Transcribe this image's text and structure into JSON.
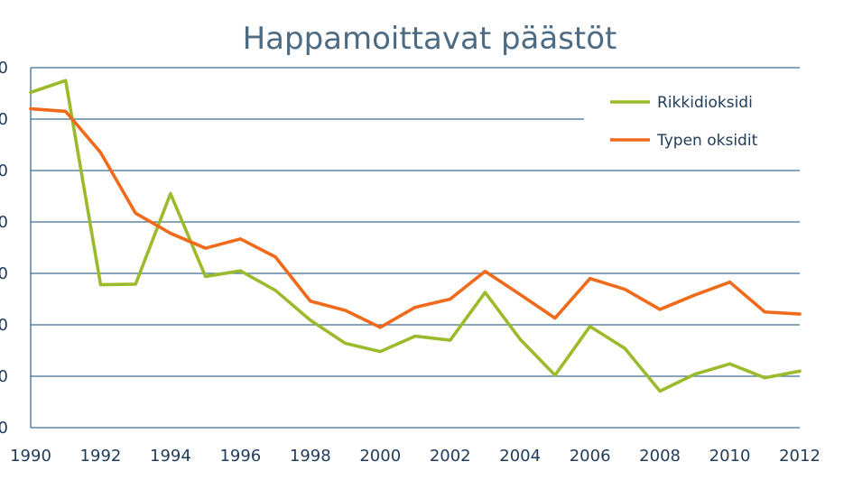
{
  "chart_data": {
    "type": "line",
    "title": "Happamoittavat päästöt",
    "xlabel": "",
    "ylabel": "",
    "x": [
      1990,
      1991,
      1992,
      1993,
      1994,
      1995,
      1996,
      1997,
      1998,
      1999,
      2000,
      2001,
      2002,
      2003,
      2004,
      2005,
      2006,
      2007,
      2008,
      2009,
      2010,
      2011,
      2012
    ],
    "x_tick_labels": [
      "1990",
      "1992",
      "1994",
      "1996",
      "1998",
      "2000",
      "2002",
      "2004",
      "2006",
      "2008",
      "2010",
      "2012"
    ],
    "y_tick_labels": [
      "0",
      "0",
      "0",
      "0",
      "0",
      "0",
      "0",
      "0"
    ],
    "ylim": [
      0,
      7
    ],
    "grid": true,
    "legend_position": "top-right",
    "series": [
      {
        "name": "Rikkidioksidi",
        "color": "#9bbb2c",
        "values": [
          6.52,
          6.75,
          2.78,
          2.79,
          4.55,
          2.94,
          3.05,
          2.67,
          2.09,
          1.64,
          1.48,
          1.78,
          1.7,
          2.63,
          1.72,
          1.02,
          1.97,
          1.54,
          0.71,
          1.04,
          1.24,
          0.97,
          1.1
        ]
      },
      {
        "name": "Typen oksidit",
        "color": "#ef6a1a",
        "values": [
          6.2,
          6.15,
          5.35,
          4.17,
          3.78,
          3.49,
          3.67,
          3.32,
          2.46,
          2.28,
          1.95,
          2.34,
          2.5,
          3.04,
          2.59,
          2.13,
          2.9,
          2.69,
          2.3,
          2.58,
          2.83,
          2.25,
          2.21
        ]
      }
    ]
  }
}
